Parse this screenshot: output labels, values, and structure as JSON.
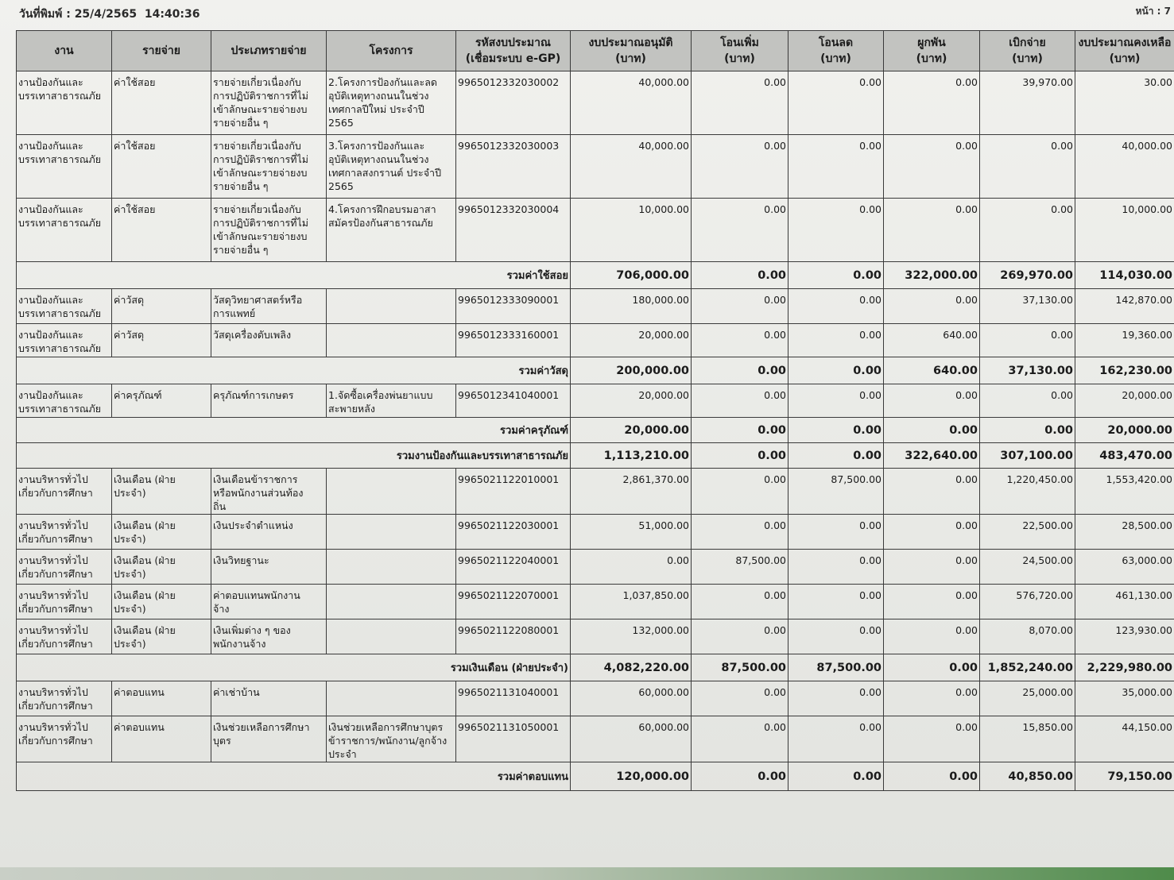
{
  "header": {
    "print_date": "วันที่พิมพ์ : 25/4/2565  14:40:36",
    "page": "หน้า : 7"
  },
  "table": {
    "columns": [
      "งาน",
      "รายจ่าย",
      "ประเภทรายจ่าย",
      "โครงการ",
      "รหัสงบประมาณ\n(เชื่อมระบบ e-GP)",
      "งบประมาณอนุมัติ\n(บาท)",
      "โอนเพิ่ม\n(บาท)",
      "โอนลด\n(บาท)",
      "ผูกพัน\n(บาท)",
      "เบิกจ่าย\n(บาท)",
      "งบประมาณคงเหลือ\n(บาท)"
    ],
    "rows": [
      {
        "type": "item",
        "h": 80,
        "task": "งานป้องกันและ\nบรรเทาสาธารณภัย",
        "expense": "ค่าใช้สอย",
        "category": "รายจ่ายเกี่ยวเนื่องกับ\nการปฏิบัติราชการที่ไม่\nเข้าลักษณะรายจ่ายงบ\nรายจ่ายอื่น ๆ",
        "project": "2.โครงการป้องกันและลด\nอุบัติเหตุทางถนนในช่วง\nเทศกาลปีใหม่ ประจำปี\n2565",
        "code": "9965012332030002",
        "approved": "40,000.00",
        "transfer_in": "0.00",
        "transfer_out": "0.00",
        "committed": "0.00",
        "disbursed": "39,970.00",
        "remaining": "30.00"
      },
      {
        "type": "item",
        "h": 80,
        "task": "งานป้องกันและ\nบรรเทาสาธารณภัย",
        "expense": "ค่าใช้สอย",
        "category": "รายจ่ายเกี่ยวเนื่องกับ\nการปฏิบัติราชการที่ไม่\nเข้าลักษณะรายจ่ายงบ\nรายจ่ายอื่น ๆ",
        "project": "3.โครงการป้องกันและ\nอุบัติเหตุทางถนนในช่วง\nเทศกาลสงกรานต์ ประจำปี\n2565",
        "code": "9965012332030003",
        "approved": "40,000.00",
        "transfer_in": "0.00",
        "transfer_out": "0.00",
        "committed": "0.00",
        "disbursed": "0.00",
        "remaining": "40,000.00"
      },
      {
        "type": "item",
        "h": 80,
        "task": "งานป้องกันและ\nบรรเทาสาธารณภัย",
        "expense": "ค่าใช้สอย",
        "category": "รายจ่ายเกี่ยวเนื่องกับ\nการปฏิบัติราชการที่ไม่\nเข้าลักษณะรายจ่ายงบ\nรายจ่ายอื่น ๆ",
        "project": "4.โครงการฝึกอบรมอาสา\nสมัครป้องกันสาธารณภัย",
        "code": "9965012332030004",
        "approved": "10,000.00",
        "transfer_in": "0.00",
        "transfer_out": "0.00",
        "committed": "0.00",
        "disbursed": "0.00",
        "remaining": "10,000.00"
      },
      {
        "type": "sum",
        "h": 34,
        "label": "รวมค่าใช้สอย",
        "approved": "706,000.00",
        "transfer_in": "0.00",
        "transfer_out": "0.00",
        "committed": "322,000.00",
        "disbursed": "269,970.00",
        "remaining": "114,030.00"
      },
      {
        "type": "item",
        "h": 44,
        "task": "งานป้องกันและ\nบรรเทาสาธารณภัย",
        "expense": "ค่าวัสดุ",
        "category": "วัสดุวิทยาศาสตร์หรือ\nการแพทย์",
        "project": "",
        "code": "9965012333090001",
        "approved": "180,000.00",
        "transfer_in": "0.00",
        "transfer_out": "0.00",
        "committed": "0.00",
        "disbursed": "37,130.00",
        "remaining": "142,870.00"
      },
      {
        "type": "item",
        "h": 42,
        "task": "งานป้องกันและ\nบรรเทาสาธารณภัย",
        "expense": "ค่าวัสดุ",
        "category": "วัสดุเครื่องดับเพลิง",
        "project": "",
        "code": "9965012333160001",
        "approved": "20,000.00",
        "transfer_in": "0.00",
        "transfer_out": "0.00",
        "committed": "640.00",
        "disbursed": "0.00",
        "remaining": "19,360.00"
      },
      {
        "type": "sum",
        "h": 34,
        "label": "รวมค่าวัสดุ",
        "approved": "200,000.00",
        "transfer_in": "0.00",
        "transfer_out": "0.00",
        "committed": "640.00",
        "disbursed": "37,130.00",
        "remaining": "162,230.00"
      },
      {
        "type": "item",
        "h": 42,
        "task": "งานป้องกันและ\nบรรเทาสาธารณภัย",
        "expense": "ค่าครุภัณฑ์",
        "category": "ครุภัณฑ์การเกษตร",
        "project": "1.จัดซื้อเครื่องพ่นยาแบบ\nสะพายหลัง",
        "code": "9965012341040001",
        "approved": "20,000.00",
        "transfer_in": "0.00",
        "transfer_out": "0.00",
        "committed": "0.00",
        "disbursed": "0.00",
        "remaining": "20,000.00"
      },
      {
        "type": "sum",
        "h": 30,
        "label": "รวมค่าครุภัณฑ์",
        "approved": "20,000.00",
        "transfer_in": "0.00",
        "transfer_out": "0.00",
        "committed": "0.00",
        "disbursed": "0.00",
        "remaining": "20,000.00"
      },
      {
        "type": "sum",
        "h": 32,
        "label": "รวมงานป้องกันและบรรเทาสาธารณภัย",
        "approved": "1,113,210.00",
        "transfer_in": "0.00",
        "transfer_out": "0.00",
        "committed": "322,640.00",
        "disbursed": "307,100.00",
        "remaining": "483,470.00"
      },
      {
        "type": "item",
        "h": 58,
        "task": "งานบริหารทั่วไป\nเกี่ยวกับการศึกษา",
        "expense": "เงินเดือน (ฝ่าย\nประจำ)",
        "category": "เงินเดือนข้าราชการ\nหรือพนักงานส่วนท้อง\nถิ่น",
        "project": "",
        "code": "9965021122010001",
        "approved": "2,861,370.00",
        "transfer_in": "0.00",
        "transfer_out": "87,500.00",
        "committed": "0.00",
        "disbursed": "1,220,450.00",
        "remaining": "1,553,420.00"
      },
      {
        "type": "item",
        "h": 44,
        "task": "งานบริหารทั่วไป\nเกี่ยวกับการศึกษา",
        "expense": "เงินเดือน (ฝ่าย\nประจำ)",
        "category": "เงินประจำตำแหน่ง",
        "project": "",
        "code": "9965021122030001",
        "approved": "51,000.00",
        "transfer_in": "0.00",
        "transfer_out": "0.00",
        "committed": "0.00",
        "disbursed": "22,500.00",
        "remaining": "28,500.00"
      },
      {
        "type": "item",
        "h": 44,
        "task": "งานบริหารทั่วไป\nเกี่ยวกับการศึกษา",
        "expense": "เงินเดือน (ฝ่าย\nประจำ)",
        "category": "เงินวิทยฐานะ",
        "project": "",
        "code": "9965021122040001",
        "approved": "0.00",
        "transfer_in": "87,500.00",
        "transfer_out": "0.00",
        "committed": "0.00",
        "disbursed": "24,500.00",
        "remaining": "63,000.00"
      },
      {
        "type": "item",
        "h": 44,
        "task": "งานบริหารทั่วไป\nเกี่ยวกับการศึกษา",
        "expense": "เงินเดือน (ฝ่าย\nประจำ)",
        "category": "ค่าตอบแทนพนักงาน\nจ้าง",
        "project": "",
        "code": "9965021122070001",
        "approved": "1,037,850.00",
        "transfer_in": "0.00",
        "transfer_out": "0.00",
        "committed": "0.00",
        "disbursed": "576,720.00",
        "remaining": "461,130.00"
      },
      {
        "type": "item",
        "h": 44,
        "task": "งานบริหารทั่วไป\nเกี่ยวกับการศึกษา",
        "expense": "เงินเดือน (ฝ่าย\nประจำ)",
        "category": "เงินเพิ่มต่าง ๆ ของ\nพนักงานจ้าง",
        "project": "",
        "code": "9965021122080001",
        "approved": "132,000.00",
        "transfer_in": "0.00",
        "transfer_out": "0.00",
        "committed": "0.00",
        "disbursed": "8,070.00",
        "remaining": "123,930.00"
      },
      {
        "type": "sum",
        "h": 34,
        "label": "รวมเงินเดือน (ฝ่ายประจำ)",
        "approved": "4,082,220.00",
        "transfer_in": "87,500.00",
        "transfer_out": "87,500.00",
        "committed": "0.00",
        "disbursed": "1,852,240.00",
        "remaining": "2,229,980.00"
      },
      {
        "type": "item",
        "h": 44,
        "task": "งานบริหารทั่วไป\nเกี่ยวกับการศึกษา",
        "expense": "ค่าตอบแทน",
        "category": "ค่าเช่าบ้าน",
        "project": "",
        "code": "9965021131040001",
        "approved": "60,000.00",
        "transfer_in": "0.00",
        "transfer_out": "0.00",
        "committed": "0.00",
        "disbursed": "25,000.00",
        "remaining": "35,000.00"
      },
      {
        "type": "item",
        "h": 58,
        "task": "งานบริหารทั่วไป\nเกี่ยวกับการศึกษา",
        "expense": "ค่าตอบแทน",
        "category": "เงินช่วยเหลือการศึกษา\nบุตร",
        "project": "เงินช่วยเหลือการศึกษาบุตร\nข้าราชการ/พนักงาน/ลูกจ้าง\nประจำ",
        "code": "9965021131050001",
        "approved": "60,000.00",
        "transfer_in": "0.00",
        "transfer_out": "0.00",
        "committed": "0.00",
        "disbursed": "15,850.00",
        "remaining": "44,150.00"
      },
      {
        "type": "sum",
        "h": 36,
        "label": "รวมค่าตอบแทน",
        "approved": "120,000.00",
        "transfer_in": "0.00",
        "transfer_out": "0.00",
        "committed": "0.00",
        "disbursed": "40,850.00",
        "remaining": "79,150.00"
      }
    ]
  }
}
